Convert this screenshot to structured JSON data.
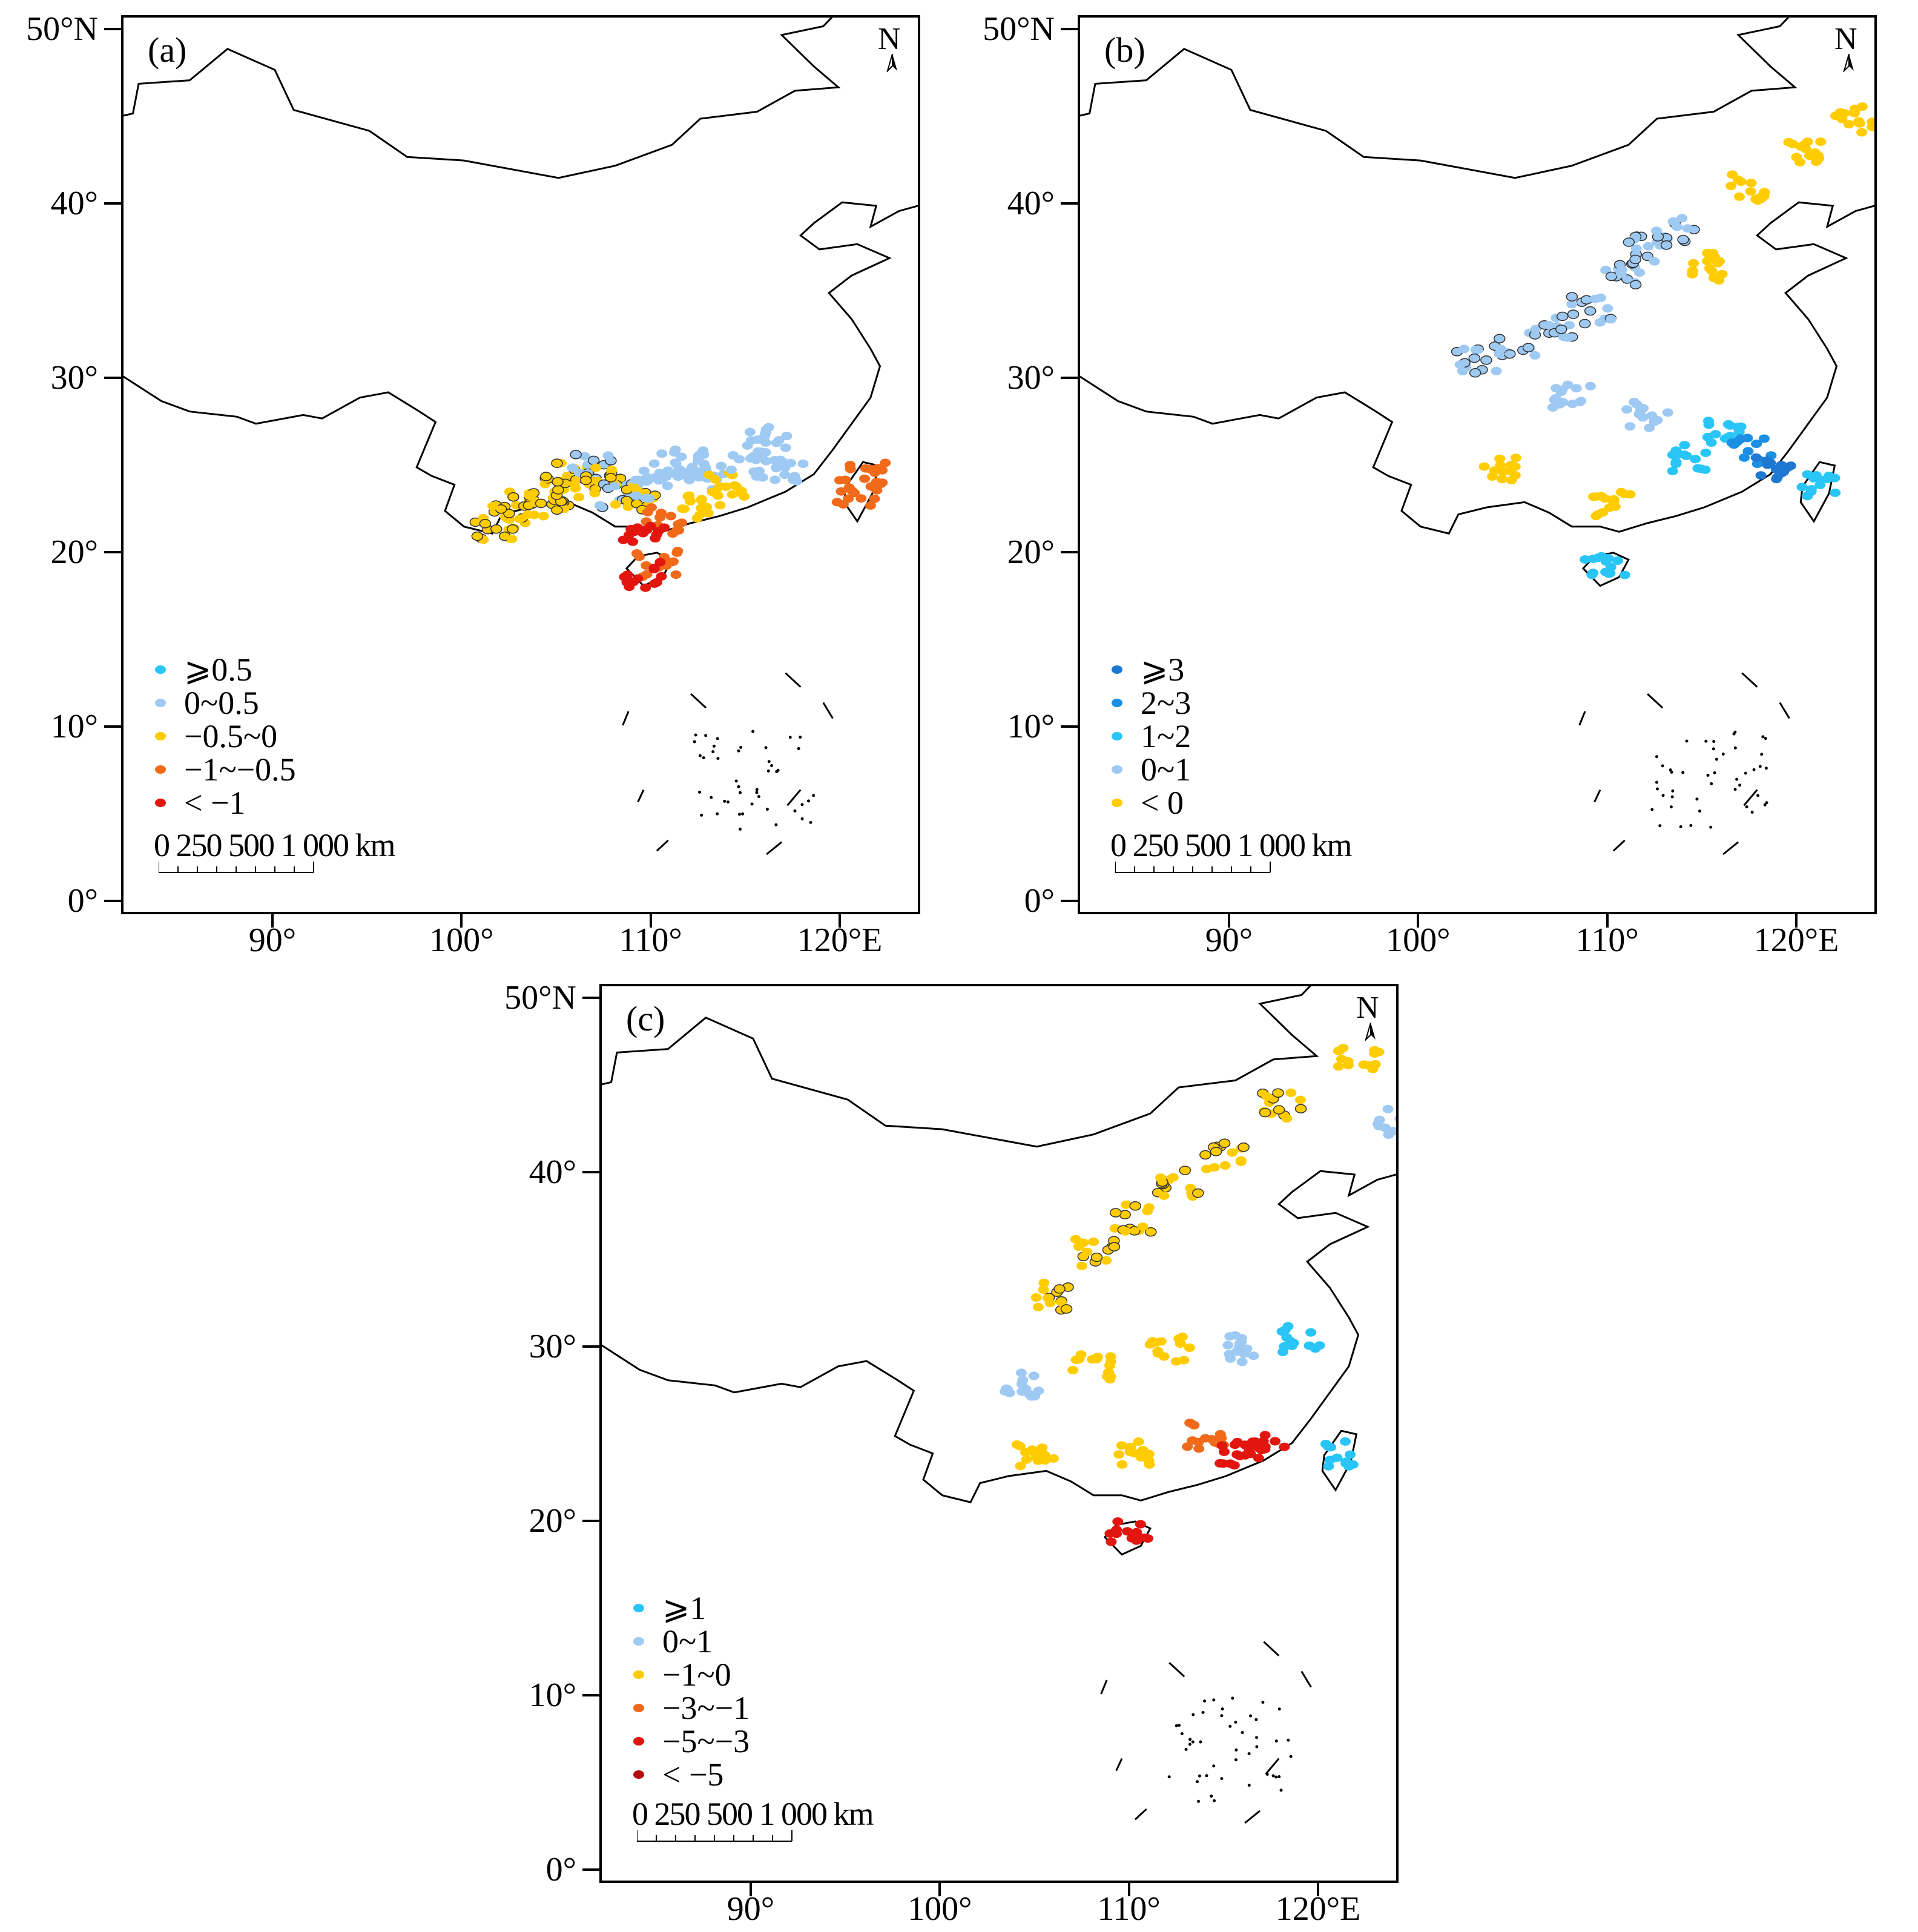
{
  "panels": [
    {
      "id": "a",
      "label": "(a)",
      "legend": [
        {
          "text": "⩾0.5",
          "color": "#29c5f6"
        },
        {
          "text": "0~0.5",
          "color": "#9ec9f2"
        },
        {
          "text": "−0.5~0",
          "color": "#ffcc00"
        },
        {
          "text": "−1~−0.5",
          "color": "#f06a1a"
        },
        {
          "text": "< −1",
          "color": "#e3150f"
        }
      ],
      "points": [
        {
          "lon": 101.5,
          "lat": 21.5,
          "class": 2,
          "circled": true
        },
        {
          "lon": 102.5,
          "lat": 22.2,
          "class": 2,
          "circled": true
        },
        {
          "lon": 103.5,
          "lat": 22.8,
          "class": 2,
          "circled": true
        },
        {
          "lon": 104.5,
          "lat": 23.0,
          "class": 2,
          "circled": true
        },
        {
          "lon": 105.2,
          "lat": 23.8,
          "class": 2,
          "circled": true
        },
        {
          "lon": 106.0,
          "lat": 24.5,
          "class": 2,
          "circled": true
        },
        {
          "lon": 106.8,
          "lat": 25.0,
          "class": 1,
          "circled": true
        },
        {
          "lon": 107.5,
          "lat": 24.2,
          "class": 2,
          "circled": true
        },
        {
          "lon": 108.2,
          "lat": 23.5,
          "class": 1,
          "circled": true
        },
        {
          "lon": 109.0,
          "lat": 23.2,
          "class": 2,
          "circled": true
        },
        {
          "lon": 110.0,
          "lat": 24.0,
          "class": 1,
          "circled": false
        },
        {
          "lon": 111.0,
          "lat": 25.0,
          "class": 1,
          "circled": false
        },
        {
          "lon": 112.0,
          "lat": 25.5,
          "class": 1,
          "circled": false
        },
        {
          "lon": 113.0,
          "lat": 24.5,
          "class": 1,
          "circled": false
        },
        {
          "lon": 114.0,
          "lat": 24.0,
          "class": 2,
          "circled": false
        },
        {
          "lon": 115.0,
          "lat": 25.2,
          "class": 1,
          "circled": false
        },
        {
          "lon": 116.0,
          "lat": 26.5,
          "class": 1,
          "circled": false
        },
        {
          "lon": 117.0,
          "lat": 25.0,
          "class": 1,
          "circled": false
        },
        {
          "lon": 112.5,
          "lat": 22.8,
          "class": 2,
          "circled": false
        },
        {
          "lon": 110.5,
          "lat": 22.0,
          "class": 3,
          "circled": false
        },
        {
          "lon": 109.5,
          "lat": 21.5,
          "class": 4,
          "circled": false
        },
        {
          "lon": 110.2,
          "lat": 19.5,
          "class": 3,
          "circled": false
        },
        {
          "lon": 109.5,
          "lat": 18.8,
          "class": 4,
          "circled": false
        },
        {
          "lon": 120.8,
          "lat": 23.5,
          "class": 3,
          "circled": false
        },
        {
          "lon": 121.2,
          "lat": 24.5,
          "class": 3,
          "circled": false
        }
      ]
    },
    {
      "id": "b",
      "label": "(b)",
      "legend": [
        {
          "text": "⩾3",
          "color": "#1f78d1"
        },
        {
          "text": "2~3",
          "color": "#1a8fe3"
        },
        {
          "text": "1~2",
          "color": "#29c5f6"
        },
        {
          "text": "0~1",
          "color": "#9ec9f2"
        },
        {
          "text": "< 0",
          "color": "#ffcc00"
        }
      ],
      "points": [
        {
          "lon": 103.0,
          "lat": 31.0,
          "class": 3,
          "circled": true
        },
        {
          "lon": 105.0,
          "lat": 32.0,
          "class": 3,
          "circled": true
        },
        {
          "lon": 107.0,
          "lat": 33.0,
          "class": 3,
          "circled": true
        },
        {
          "lon": 109.0,
          "lat": 34.0,
          "class": 3,
          "circled": true
        },
        {
          "lon": 110.5,
          "lat": 36.0,
          "class": 3,
          "circled": true
        },
        {
          "lon": 112.0,
          "lat": 37.5,
          "class": 3,
          "circled": true
        },
        {
          "lon": 113.5,
          "lat": 38.5,
          "class": 3,
          "circled": true
        },
        {
          "lon": 115.0,
          "lat": 36.5,
          "class": 4,
          "circled": false
        },
        {
          "lon": 117.5,
          "lat": 41.0,
          "class": 4,
          "circled": false
        },
        {
          "lon": 120.5,
          "lat": 43.0,
          "class": 4,
          "circled": false
        },
        {
          "lon": 123.0,
          "lat": 45.0,
          "class": 4,
          "circled": false
        },
        {
          "lon": 126.0,
          "lat": 47.5,
          "class": 4,
          "circled": false
        },
        {
          "lon": 108.0,
          "lat": 29.0,
          "class": 3,
          "circled": false
        },
        {
          "lon": 112.0,
          "lat": 28.0,
          "class": 3,
          "circled": false
        },
        {
          "lon": 116.0,
          "lat": 27.0,
          "class": 2,
          "circled": false
        },
        {
          "lon": 117.5,
          "lat": 26.0,
          "class": 1,
          "circled": false
        },
        {
          "lon": 118.5,
          "lat": 25.0,
          "class": 0,
          "circled": false
        },
        {
          "lon": 114.0,
          "lat": 25.5,
          "class": 2,
          "circled": false
        },
        {
          "lon": 104.0,
          "lat": 25.0,
          "class": 4,
          "circled": false
        },
        {
          "lon": 110.0,
          "lat": 23.0,
          "class": 4,
          "circled": false
        },
        {
          "lon": 121.0,
          "lat": 24.0,
          "class": 2,
          "circled": false
        },
        {
          "lon": 109.8,
          "lat": 19.2,
          "class": 2,
          "circled": false
        }
      ]
    },
    {
      "id": "c",
      "label": "(c)",
      "legend": [
        {
          "text": "⩾1",
          "color": "#29c5f6"
        },
        {
          "text": "0~1",
          "color": "#9ec9f2"
        },
        {
          "text": "−1~0",
          "color": "#ffcc00"
        },
        {
          "text": "−3~−1",
          "color": "#f06a1a"
        },
        {
          "text": "−5~−3",
          "color": "#e3150f"
        },
        {
          "text": "< −5",
          "color": "#b30d0d"
        }
      ],
      "points": [
        {
          "lon": 106.0,
          "lat": 33.0,
          "class": 2,
          "circled": true
        },
        {
          "lon": 108.0,
          "lat": 35.5,
          "class": 2,
          "circled": true
        },
        {
          "lon": 110.0,
          "lat": 37.5,
          "class": 2,
          "circled": true
        },
        {
          "lon": 112.5,
          "lat": 39.5,
          "class": 2,
          "circled": true
        },
        {
          "lon": 115.0,
          "lat": 41.0,
          "class": 2,
          "circled": true
        },
        {
          "lon": 118.0,
          "lat": 44.0,
          "class": 2,
          "circled": true
        },
        {
          "lon": 122.0,
          "lat": 46.5,
          "class": 2,
          "circled": false
        },
        {
          "lon": 126.0,
          "lat": 47.0,
          "class": 2,
          "circled": false
        },
        {
          "lon": 124.0,
          "lat": 43.0,
          "class": 1,
          "circled": false
        },
        {
          "lon": 104.0,
          "lat": 28.0,
          "class": 1,
          "circled": false
        },
        {
          "lon": 108.0,
          "lat": 29.0,
          "class": 2,
          "circled": false
        },
        {
          "lon": 112.0,
          "lat": 30.0,
          "class": 2,
          "circled": false
        },
        {
          "lon": 116.0,
          "lat": 30.0,
          "class": 1,
          "circled": false
        },
        {
          "lon": 119.0,
          "lat": 30.5,
          "class": 0,
          "circled": false
        },
        {
          "lon": 114.0,
          "lat": 25.0,
          "class": 3,
          "circled": false
        },
        {
          "lon": 115.5,
          "lat": 24.0,
          "class": 4,
          "circled": false
        },
        {
          "lon": 117.0,
          "lat": 24.5,
          "class": 4,
          "circled": false
        },
        {
          "lon": 110.0,
          "lat": 24.0,
          "class": 2,
          "circled": false
        },
        {
          "lon": 105.0,
          "lat": 24.0,
          "class": 2,
          "circled": false
        },
        {
          "lon": 109.8,
          "lat": 19.3,
          "class": 4,
          "circled": false
        },
        {
          "lon": 121.0,
          "lat": 24.0,
          "class": 0,
          "circled": false
        }
      ]
    }
  ],
  "north_label": "N",
  "scale_text": "0 250 500 1 000 km",
  "lat_ticks": [
    {
      "label": "50°N",
      "lat": 50
    },
    {
      "label": "40°",
      "lat": 40
    },
    {
      "label": "30°",
      "lat": 30
    },
    {
      "label": "20°",
      "lat": 20
    },
    {
      "label": "10°",
      "lat": 10
    },
    {
      "label": "0°",
      "lat": 0
    }
  ],
  "lon_ticks": [
    {
      "label": "90°",
      "lon": 90
    },
    {
      "label": "100°",
      "lon": 100
    },
    {
      "label": "110°",
      "lon": 110
    },
    {
      "label": "120°E",
      "lon": 120
    }
  ]
}
